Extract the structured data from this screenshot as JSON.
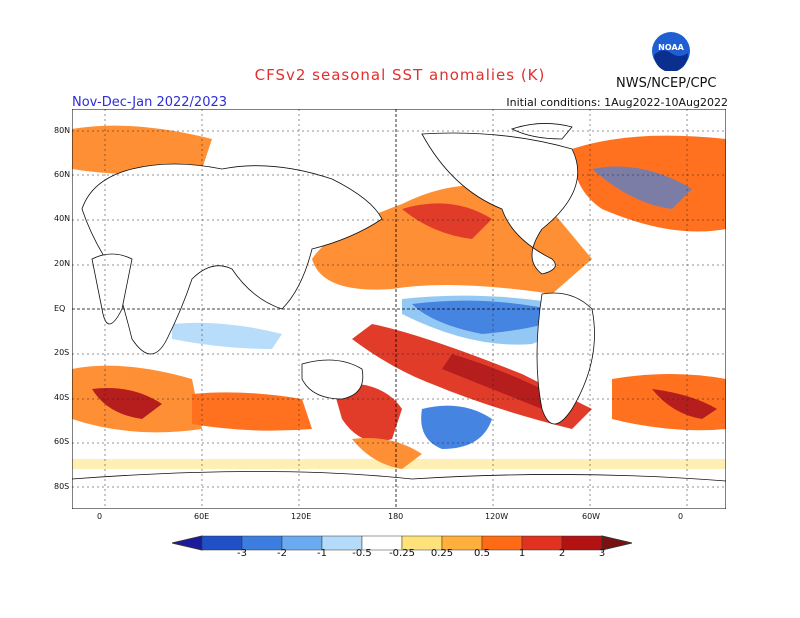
{
  "header": {
    "title": "CFSv2 seasonal SST anomalies (K)",
    "agency": "NWS/NCEP/CPC",
    "season": "Nov-Dec-Jan 2022/2023",
    "initial_conditions": "Initial conditions: 1Aug2022-10Aug2022"
  },
  "logo": {
    "text": "NOAA"
  },
  "map": {
    "lat_labels": [
      "80N",
      "60N",
      "40N",
      "20N",
      "EQ",
      "20S",
      "40S",
      "60S",
      "80S"
    ],
    "lon_labels": [
      "0",
      "60E",
      "120E",
      "180",
      "120W",
      "60W",
      "0"
    ]
  },
  "colorbar": {
    "labels": [
      "-3",
      "-2",
      "-1",
      "-0.5",
      "-0.25",
      "0.25",
      "0.5",
      "1",
      "2",
      "3"
    ],
    "colors": [
      "#1a1a9e",
      "#2050c8",
      "#3c7ee0",
      "#6aaaf0",
      "#b4dcfa",
      "#ffffff",
      "#ffe27a",
      "#ffb03c",
      "#ff6a14",
      "#e0321e",
      "#b31212",
      "#7a1010"
    ]
  }
}
